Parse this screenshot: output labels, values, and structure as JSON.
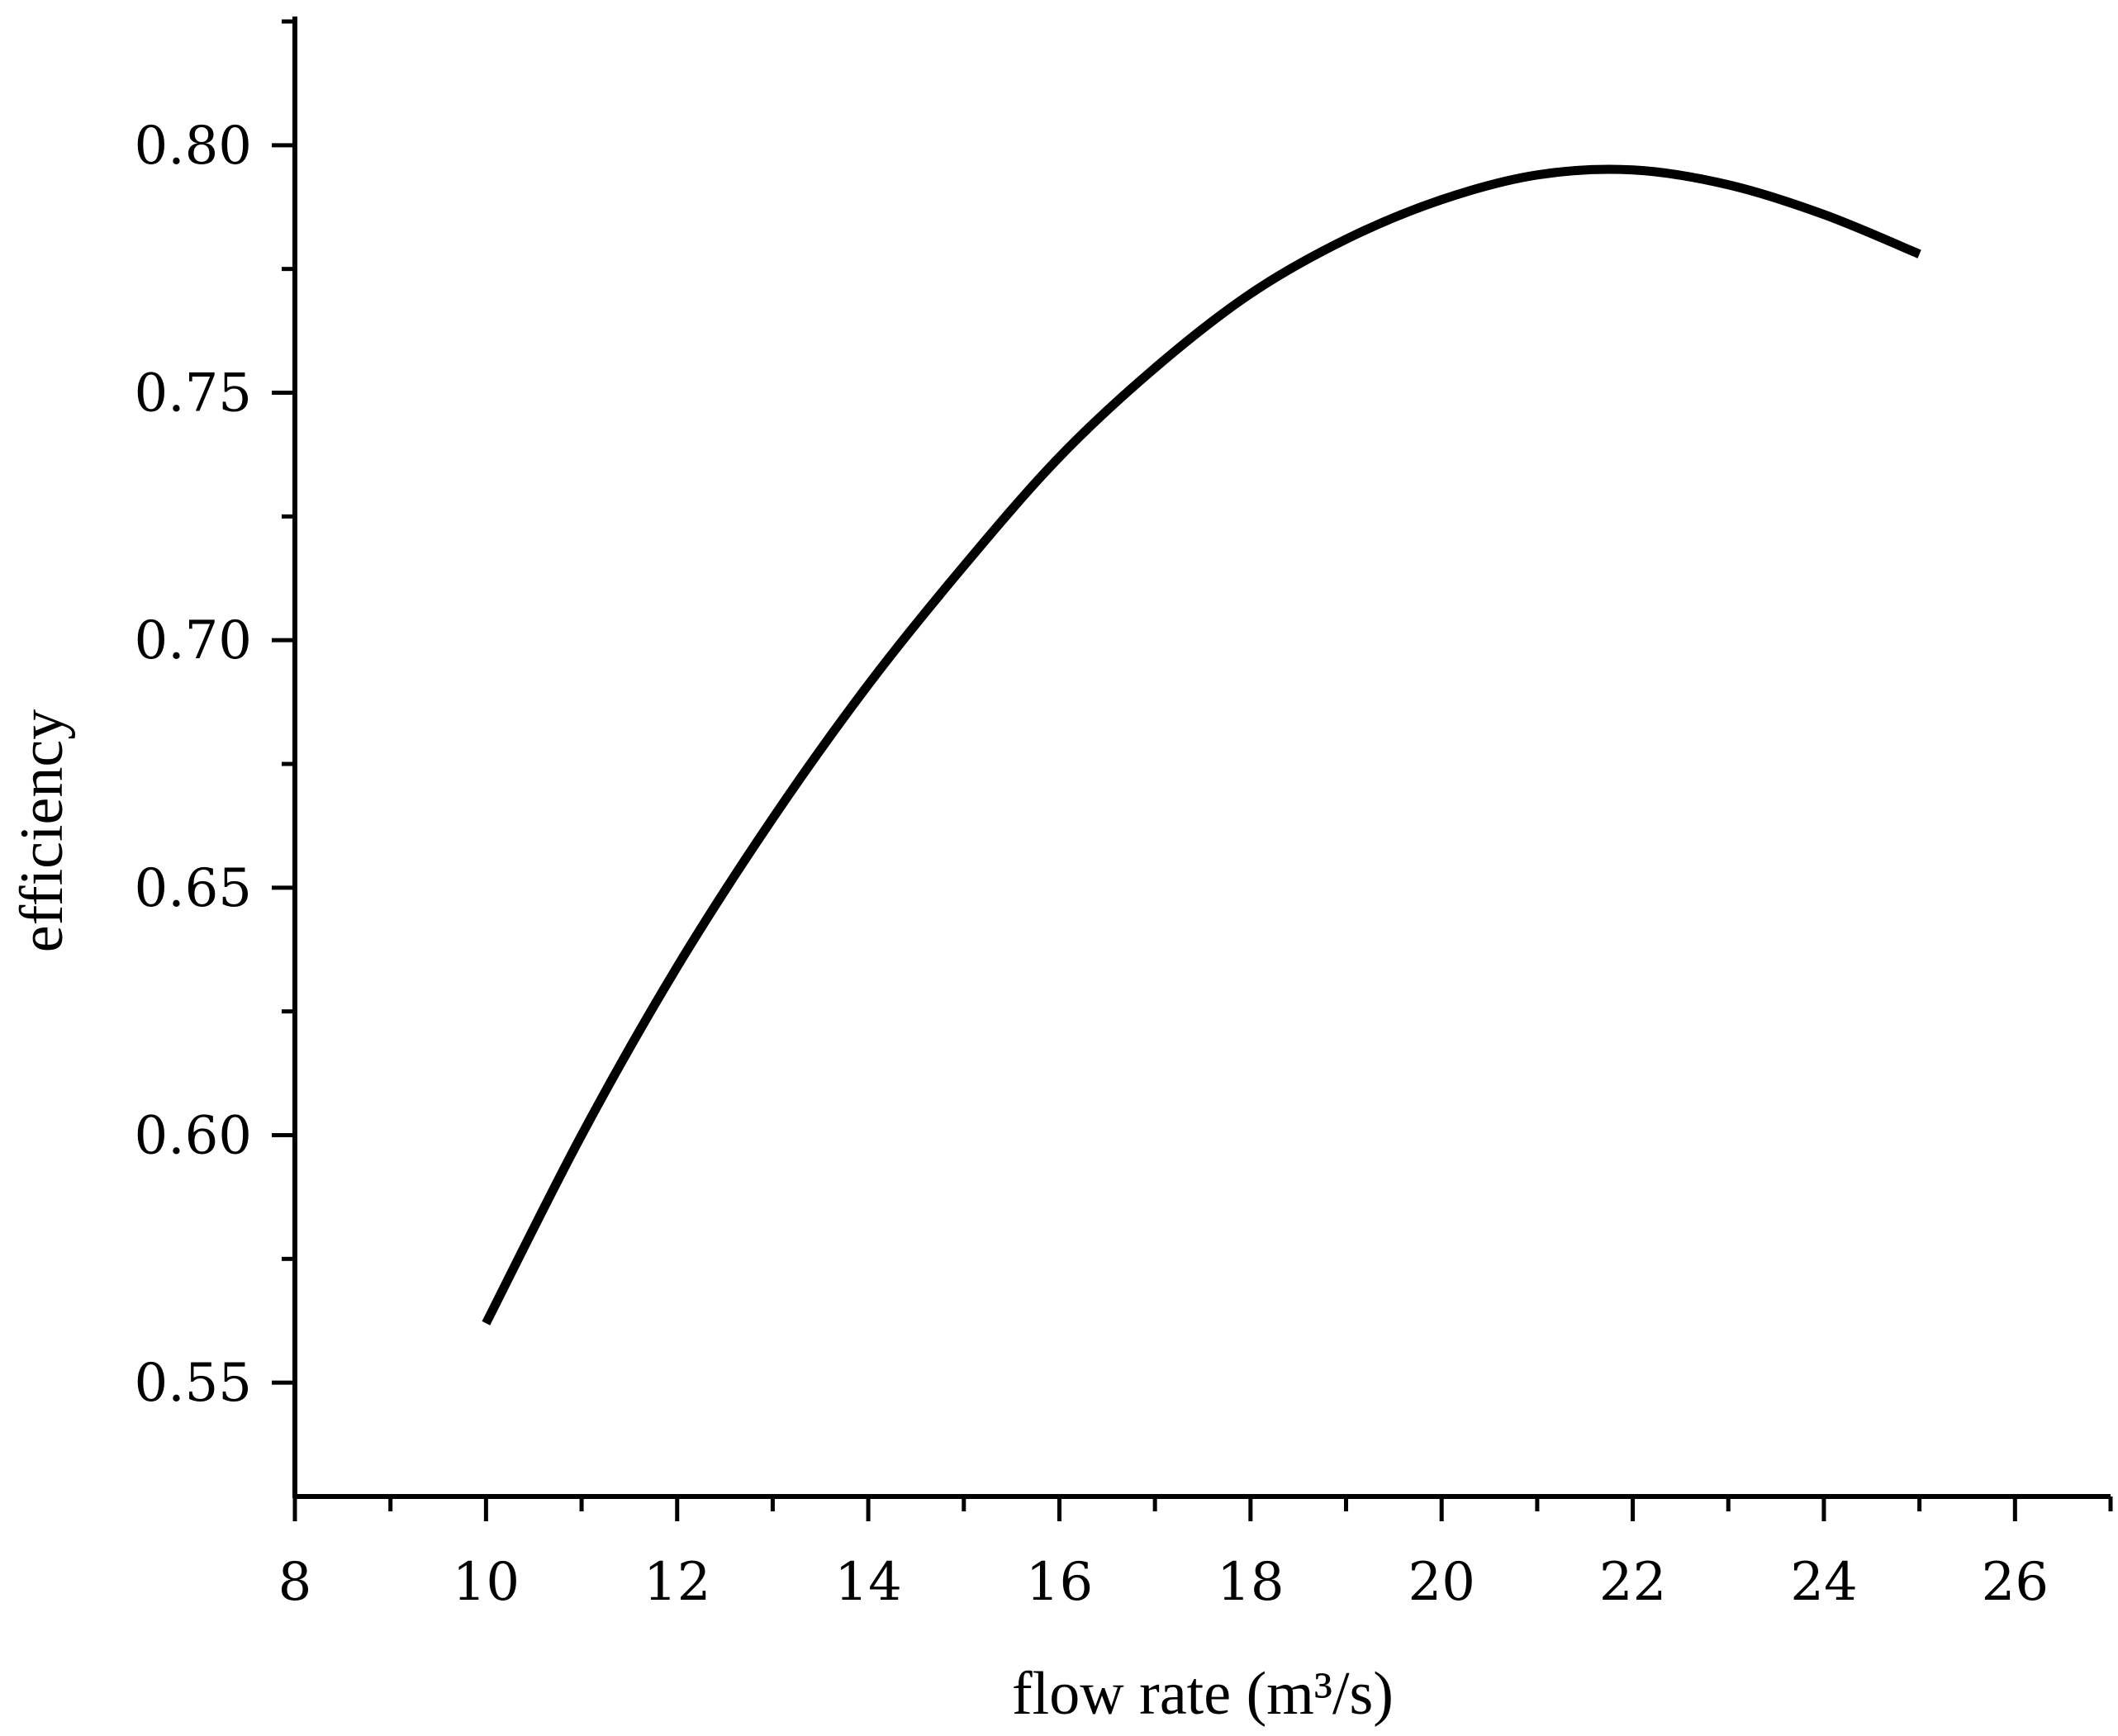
{
  "chart_data": {
    "type": "line",
    "title": "",
    "xlabel": "flow rate (m³/s)",
    "ylabel": "efficiency",
    "xlim": [
      8,
      27
    ],
    "ylim": [
      0.527,
      0.826
    ],
    "x_ticks": [
      8,
      10,
      12,
      14,
      16,
      18,
      20,
      22,
      24,
      26
    ],
    "x_tick_labels": [
      "8",
      "10",
      "12",
      "14",
      "16",
      "18",
      "20",
      "22",
      "24",
      "26"
    ],
    "x_minor_step": 1,
    "y_ticks": [
      0.55,
      0.6,
      0.65,
      0.7,
      0.75,
      0.8
    ],
    "y_tick_labels": [
      "0.55",
      "0.60",
      "0.65",
      "0.70",
      "0.75",
      "0.80"
    ],
    "y_minor_step": 0.025,
    "grid": false,
    "line_color": "#000000",
    "series": [
      {
        "x": [
          10,
          11,
          12,
          13,
          14,
          15,
          16,
          17,
          18,
          19,
          20,
          21,
          22,
          23,
          24,
          25
        ],
        "y": [
          0.562,
          0.6,
          0.634,
          0.664,
          0.691,
          0.715,
          0.737,
          0.755,
          0.77,
          0.781,
          0.789,
          0.794,
          0.795,
          0.792,
          0.786,
          0.778
        ]
      }
    ]
  }
}
